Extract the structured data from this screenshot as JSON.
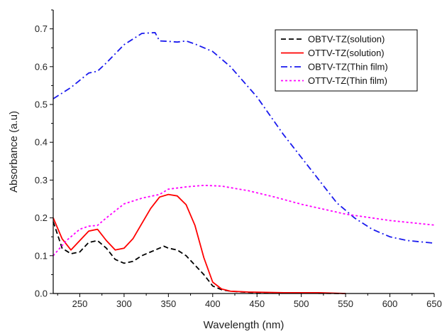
{
  "chart_data": {
    "type": "line",
    "title": "",
    "xlabel": "Wavelength (nm)",
    "ylabel": "Absorbance (a.u)",
    "xlim": [
      220,
      650
    ],
    "ylim": [
      0.0,
      0.75
    ],
    "xticks": [
      250,
      300,
      350,
      400,
      450,
      500,
      550,
      600,
      650
    ],
    "yticks": [
      0.0,
      0.1,
      0.2,
      0.3,
      0.4,
      0.5,
      0.6,
      0.7
    ],
    "xtick_labels": [
      "250",
      "300",
      "350",
      "400",
      "450",
      "500",
      "550",
      "600",
      "650"
    ],
    "ytick_labels": [
      "0.0",
      "0.1",
      "0.2",
      "0.3",
      "0.4",
      "0.5",
      "0.6",
      "0.7"
    ],
    "grid": false,
    "legend_position": "top-right",
    "series": [
      {
        "name": "OBTV-TZ(solution)",
        "color": "#000000",
        "dash": "dash",
        "x": [
          220,
          230,
          240,
          250,
          260,
          270,
          280,
          290,
          300,
          310,
          320,
          330,
          340,
          345,
          350,
          360,
          370,
          380,
          390,
          400,
          410,
          420,
          440,
          460,
          500,
          550
        ],
        "y": [
          0.19,
          0.12,
          0.105,
          0.11,
          0.135,
          0.14,
          0.12,
          0.09,
          0.08,
          0.085,
          0.1,
          0.11,
          0.12,
          0.125,
          0.12,
          0.115,
          0.1,
          0.075,
          0.05,
          0.02,
          0.01,
          0.006,
          0.003,
          0.002,
          0.001,
          0.0
        ]
      },
      {
        "name": "OTTV-TZ(solution)",
        "color": "#ff0000",
        "dash": "solid",
        "x": [
          220,
          230,
          240,
          250,
          260,
          270,
          280,
          290,
          300,
          310,
          320,
          330,
          340,
          350,
          360,
          370,
          380,
          390,
          400,
          410,
          420,
          440,
          460,
          480,
          500,
          520,
          550
        ],
        "y": [
          0.2,
          0.145,
          0.115,
          0.14,
          0.165,
          0.17,
          0.14,
          0.115,
          0.12,
          0.145,
          0.185,
          0.225,
          0.255,
          0.262,
          0.258,
          0.235,
          0.18,
          0.095,
          0.03,
          0.012,
          0.006,
          0.004,
          0.003,
          0.002,
          0.002,
          0.002,
          0.0
        ]
      },
      {
        "name": "OBTV-TZ(Thin film)",
        "color": "#1a1aee",
        "dash": "dashdot",
        "x": [
          220,
          240,
          260,
          270,
          280,
          300,
          320,
          335,
          340,
          350,
          360,
          370,
          380,
          400,
          420,
          450,
          480,
          510,
          540,
          560,
          580,
          600,
          620,
          650
        ],
        "y": [
          0.515,
          0.545,
          0.583,
          0.588,
          0.61,
          0.658,
          0.688,
          0.69,
          0.668,
          0.667,
          0.665,
          0.668,
          0.66,
          0.64,
          0.6,
          0.52,
          0.42,
          0.33,
          0.24,
          0.2,
          0.17,
          0.15,
          0.14,
          0.133
        ]
      },
      {
        "name": "OTTV-TZ(Thin film)",
        "color": "#ff00ff",
        "dash": "dot",
        "x": [
          220,
          235,
          250,
          260,
          270,
          280,
          300,
          320,
          340,
          350,
          370,
          390,
          410,
          440,
          470,
          500,
          550,
          600,
          650
        ],
        "y": [
          0.1,
          0.14,
          0.17,
          0.178,
          0.18,
          0.2,
          0.237,
          0.252,
          0.262,
          0.276,
          0.282,
          0.286,
          0.284,
          0.272,
          0.255,
          0.236,
          0.21,
          0.193,
          0.181
        ]
      }
    ]
  }
}
